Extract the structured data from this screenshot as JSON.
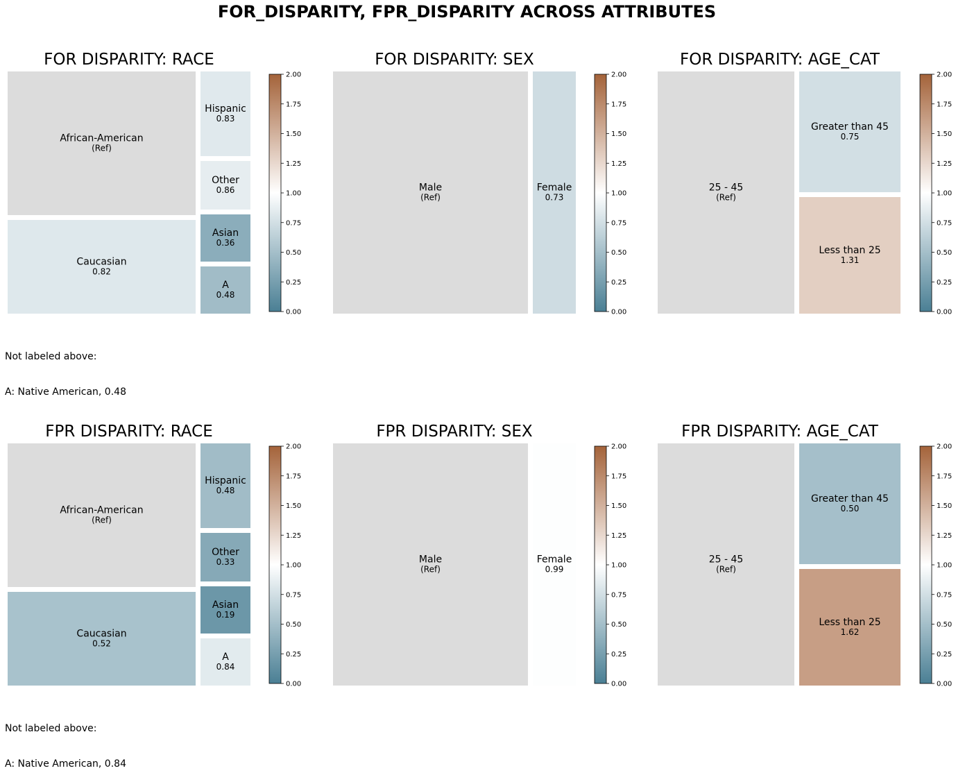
{
  "title": "FOR_DISPARITY, FPR_DISPARITY ACROSS ATTRIBUTES",
  "colors": {
    "ref": "#dcdcdc",
    "low": "#4a7f94",
    "mid": "#ffffff",
    "high": "#a4633a"
  },
  "colorbar_ticks": [
    "0.00",
    "0.25",
    "0.50",
    "0.75",
    "1.00",
    "1.25",
    "1.50",
    "1.75",
    "2.00"
  ],
  "notes": [
    {
      "line1": "Not labeled above:",
      "line2": "A: Native American, 0.48"
    },
    {
      "line1": "Not labeled above:",
      "line2": "A: Native American, 0.84"
    }
  ],
  "chart_data": [
    {
      "type": "treemap",
      "title": "FOR DISPARITY: RACE",
      "colorbar_range": [
        0,
        2
      ],
      "cells": [
        {
          "label": "African-American",
          "value_text": "(Ref)",
          "value": null,
          "ref": true
        },
        {
          "label": "Caucasian",
          "value_text": "0.82",
          "value": 0.82
        },
        {
          "label": "Hispanic",
          "value_text": "0.83",
          "value": 0.83
        },
        {
          "label": "Other",
          "value_text": "0.86",
          "value": 0.86
        },
        {
          "label": "Asian",
          "value_text": "0.36",
          "value": 0.36
        },
        {
          "label": "A",
          "value_text": "0.48",
          "value": 0.48
        }
      ]
    },
    {
      "type": "treemap",
      "title": "FOR DISPARITY: SEX",
      "colorbar_range": [
        0,
        2
      ],
      "cells": [
        {
          "label": "Male",
          "value_text": "(Ref)",
          "value": null,
          "ref": true
        },
        {
          "label": "Female",
          "value_text": "0.73",
          "value": 0.73
        }
      ]
    },
    {
      "type": "treemap",
      "title": "FOR DISPARITY: AGE_CAT",
      "colorbar_range": [
        0,
        2
      ],
      "cells": [
        {
          "label": "25 - 45",
          "value_text": "(Ref)",
          "value": null,
          "ref": true
        },
        {
          "label": "Greater than 45",
          "value_text": "0.75",
          "value": 0.75
        },
        {
          "label": "Less than 25",
          "value_text": "1.31",
          "value": 1.31
        }
      ]
    },
    {
      "type": "treemap",
      "title": "FPR DISPARITY: RACE",
      "colorbar_range": [
        0,
        2
      ],
      "cells": [
        {
          "label": "African-American",
          "value_text": "(Ref)",
          "value": null,
          "ref": true
        },
        {
          "label": "Caucasian",
          "value_text": "0.52",
          "value": 0.52
        },
        {
          "label": "Hispanic",
          "value_text": "0.48",
          "value": 0.48
        },
        {
          "label": "Other",
          "value_text": "0.33",
          "value": 0.33
        },
        {
          "label": "Asian",
          "value_text": "0.19",
          "value": 0.19
        },
        {
          "label": "A",
          "value_text": "0.84",
          "value": 0.84
        }
      ]
    },
    {
      "type": "treemap",
      "title": "FPR DISPARITY: SEX",
      "colorbar_range": [
        0,
        2
      ],
      "cells": [
        {
          "label": "Male",
          "value_text": "(Ref)",
          "value": null,
          "ref": true
        },
        {
          "label": "Female",
          "value_text": "0.99",
          "value": 0.99
        }
      ]
    },
    {
      "type": "treemap",
      "title": "FPR DISPARITY: AGE_CAT",
      "colorbar_range": [
        0,
        2
      ],
      "cells": [
        {
          "label": "25 - 45",
          "value_text": "(Ref)",
          "value": null,
          "ref": true
        },
        {
          "label": "Greater than 45",
          "value_text": "0.50",
          "value": 0.5
        },
        {
          "label": "Less than 25",
          "value_text": "1.62",
          "value": 1.62
        }
      ]
    }
  ]
}
